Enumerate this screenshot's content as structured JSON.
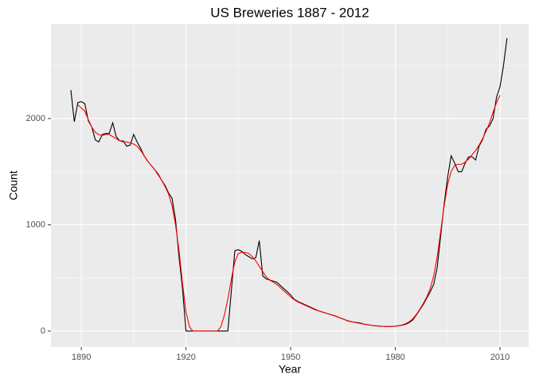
{
  "chart_data": {
    "type": "line",
    "title": "US Breweries 1887 - 2012",
    "x_label": "Year",
    "y_label": "Count",
    "x": [
      1887,
      1888,
      1889,
      1890,
      1891,
      1892,
      1893,
      1894,
      1895,
      1896,
      1897,
      1898,
      1899,
      1900,
      1901,
      1902,
      1903,
      1904,
      1905,
      1906,
      1907,
      1908,
      1909,
      1910,
      1911,
      1912,
      1913,
      1914,
      1915,
      1916,
      1917,
      1918,
      1919,
      1920,
      1921,
      1922,
      1923,
      1924,
      1925,
      1926,
      1927,
      1928,
      1929,
      1930,
      1931,
      1932,
      1933,
      1934,
      1935,
      1936,
      1937,
      1938,
      1939,
      1940,
      1941,
      1942,
      1943,
      1944,
      1945,
      1946,
      1947,
      1948,
      1949,
      1950,
      1951,
      1952,
      1953,
      1954,
      1955,
      1956,
      1957,
      1958,
      1959,
      1960,
      1961,
      1962,
      1963,
      1964,
      1965,
      1966,
      1967,
      1968,
      1969,
      1970,
      1971,
      1972,
      1973,
      1974,
      1975,
      1976,
      1977,
      1978,
      1979,
      1980,
      1981,
      1982,
      1983,
      1984,
      1985,
      1986,
      1987,
      1988,
      1989,
      1990,
      1991,
      1992,
      1993,
      1994,
      1995,
      1996,
      1997,
      1998,
      1999,
      2000,
      2001,
      2002,
      2003,
      2004,
      2005,
      2006,
      2007,
      2008,
      2009,
      2010,
      2011,
      2012
    ],
    "series": [
      {
        "color": "#000000",
        "values": [
          2269,
          1970,
          2150,
          2160,
          2140,
          1980,
          1920,
          1800,
          1780,
          1850,
          1860,
          1860,
          1960,
          1830,
          1790,
          1790,
          1740,
          1750,
          1850,
          1780,
          1720,
          1650,
          1600,
          1560,
          1520,
          1480,
          1420,
          1370,
          1300,
          1250,
          1050,
          700,
          400,
          0,
          0,
          0,
          0,
          0,
          0,
          0,
          0,
          0,
          0,
          0,
          0,
          0,
          380,
          756,
          766,
          750,
          720,
          700,
          680,
          690,
          850,
          520,
          490,
          480,
          470,
          460,
          430,
          400,
          370,
          340,
          300,
          280,
          265,
          250,
          235,
          220,
          205,
          190,
          180,
          170,
          160,
          150,
          140,
          125,
          115,
          100,
          90,
          85,
          80,
          75,
          65,
          60,
          55,
          50,
          48,
          45,
          44,
          42,
          43,
          45,
          50,
          55,
          65,
          80,
          105,
          150,
          200,
          250,
          310,
          370,
          440,
          600,
          900,
          1200,
          1450,
          1650,
          1580,
          1500,
          1500,
          1580,
          1640,
          1640,
          1610,
          1740,
          1800,
          1900,
          1930,
          2000,
          2200,
          2300,
          2500,
          2757
        ]
      },
      {
        "color": "#ff0000",
        "values": [
          null,
          null,
          2130,
          2100,
          2070,
          1990,
          1920,
          1870,
          1850,
          1840,
          1850,
          1850,
          1830,
          1810,
          1790,
          1780,
          1780,
          1770,
          1760,
          1740,
          1700,
          1650,
          1600,
          1560,
          1520,
          1470,
          1420,
          1360,
          1290,
          1180,
          1000,
          760,
          450,
          180,
          40,
          0,
          0,
          0,
          0,
          0,
          0,
          0,
          0,
          40,
          150,
          300,
          490,
          650,
          730,
          740,
          740,
          730,
          700,
          660,
          610,
          560,
          510,
          480,
          460,
          440,
          410,
          380,
          350,
          320,
          295,
          275,
          260,
          245,
          230,
          215,
          200,
          190,
          180,
          170,
          160,
          150,
          138,
          125,
          113,
          102,
          92,
          84,
          77,
          71,
          65,
          60,
          55,
          51,
          48,
          45,
          43,
          42,
          43,
          46,
          51,
          58,
          70,
          88,
          115,
          155,
          205,
          260,
          320,
          400,
          520,
          700,
          940,
          1180,
          1380,
          1500,
          1560,
          1570,
          1570,
          1590,
          1620,
          1660,
          1700,
          1750,
          1810,
          1880,
          1960,
          2060,
          2150,
          2220,
          null,
          null
        ]
      }
    ],
    "xlim": [
      1881.3,
      2018.2
    ],
    "xticks": [
      1890,
      1920,
      1950,
      1980,
      2010
    ],
    "ylim": [
      -150,
      2891
    ],
    "yticks": [
      0,
      1000,
      2000
    ],
    "grid": true
  }
}
